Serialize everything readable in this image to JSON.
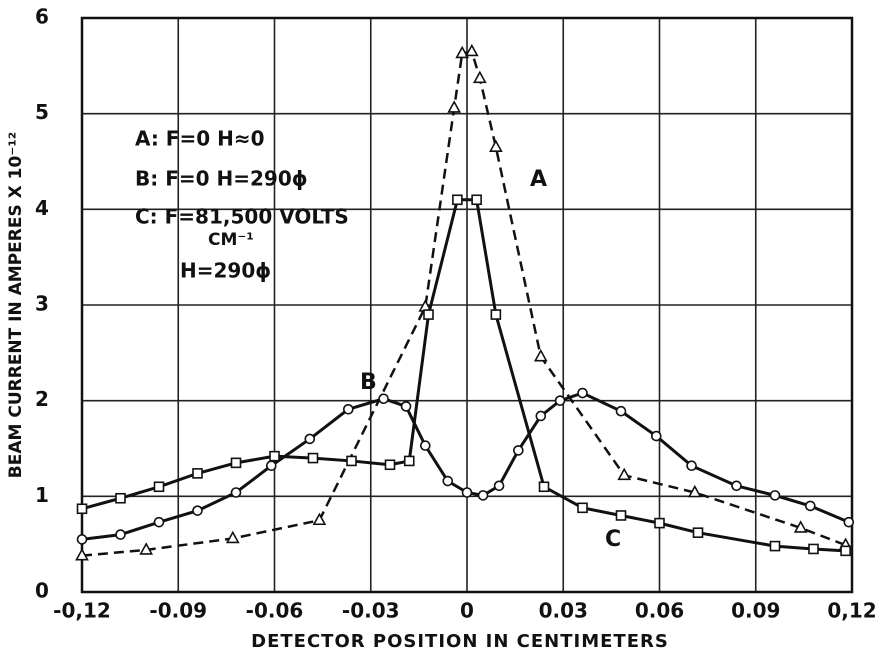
{
  "chart_data": {
    "type": "line",
    "xlabel": "DETECTOR POSITION IN CENTIMETERS",
    "ylabel": "BEAM CURRENT IN AMPERES X 10⁻¹²",
    "xlim": [
      -0.12,
      0.12
    ],
    "ylim": [
      0,
      6
    ],
    "xticks": [
      {
        "value": -0.12,
        "label": "-0,12"
      },
      -0.09,
      -0.06,
      -0.03,
      0,
      0.03,
      0.06,
      0.09,
      {
        "value": 0.12,
        "label": "0,12"
      }
    ],
    "yticks": [
      0,
      1,
      2,
      3,
      4,
      5,
      6
    ],
    "grid": true,
    "annotations": [
      "A: F=0  H≈0",
      "B: F=0  H=290ϕ",
      "C: F=81,500 VOLTS",
      "CM⁻¹",
      "H=290ϕ"
    ],
    "series": [
      {
        "name": "A",
        "color": "#111111",
        "marker": "triangle",
        "dash": true,
        "x": [
          -0.12,
          -0.1,
          -0.073,
          -0.046,
          -0.013,
          -0.004,
          -0.0015,
          0.0015,
          0.004,
          0.009,
          0.023,
          0.049,
          0.071,
          0.104,
          0.118
        ],
        "values": [
          0.38,
          0.44,
          0.56,
          0.75,
          2.98,
          5.06,
          5.63,
          5.65,
          5.37,
          4.65,
          2.46,
          1.22,
          1.04,
          0.67,
          0.49
        ]
      },
      {
        "name": "B",
        "color": "#111111",
        "marker": "circle",
        "dash": false,
        "x": [
          -0.12,
          -0.108,
          -0.096,
          -0.084,
          -0.072,
          -0.061,
          -0.049,
          -0.037,
          -0.026,
          -0.019,
          -0.013,
          -0.006,
          0,
          0.005,
          0.01,
          0.016,
          0.023,
          0.029,
          0.036,
          0.048,
          0.059,
          0.07,
          0.084,
          0.096,
          0.107,
          0.119
        ],
        "values": [
          0.55,
          0.6,
          0.73,
          0.85,
          1.04,
          1.32,
          1.6,
          1.91,
          2.02,
          1.94,
          1.53,
          1.16,
          1.04,
          1.01,
          1.11,
          1.48,
          1.84,
          2.0,
          2.08,
          1.89,
          1.63,
          1.32,
          1.11,
          1.01,
          0.9,
          0.73
        ]
      },
      {
        "name": "C",
        "color": "#111111",
        "marker": "square",
        "dash": false,
        "x": [
          -0.12,
          -0.108,
          -0.096,
          -0.084,
          -0.072,
          -0.06,
          -0.048,
          -0.036,
          -0.024,
          -0.018,
          -0.012,
          -0.003,
          0.003,
          0.009,
          0.024,
          0.036,
          0.048,
          0.06,
          0.072,
          0.096,
          0.108,
          0.118
        ],
        "values": [
          0.87,
          0.98,
          1.1,
          1.24,
          1.35,
          1.42,
          1.4,
          1.37,
          1.33,
          1.37,
          2.9,
          4.1,
          4.1,
          2.9,
          1.1,
          0.88,
          0.8,
          0.72,
          0.62,
          0.48,
          0.45,
          0.43
        ]
      }
    ]
  }
}
